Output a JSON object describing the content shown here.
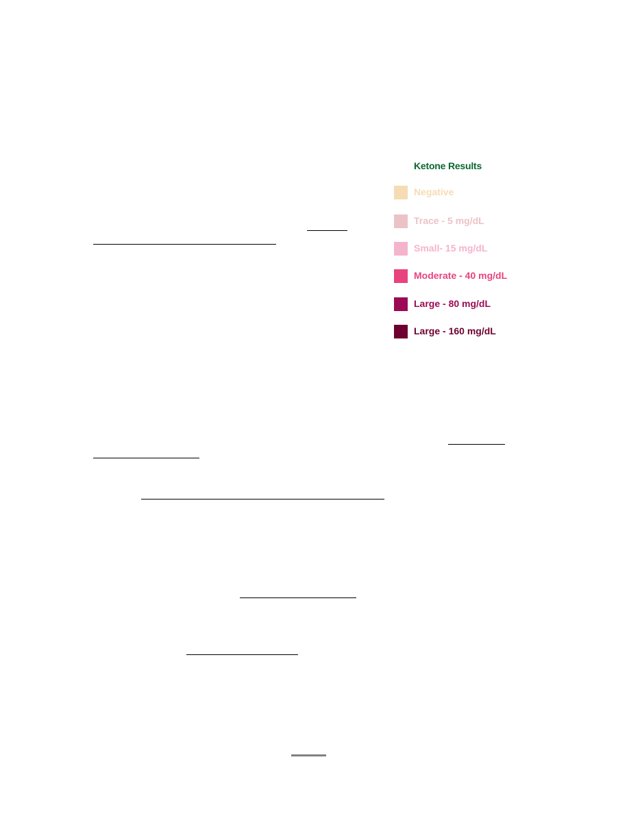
{
  "legend": {
    "title": "Ketone Results",
    "items": [
      {
        "label": "Negative",
        "color": "#f5dcb4"
      },
      {
        "label": "Trace - 5 mg/dL",
        "color": "#ebc3c6"
      },
      {
        "label": "Small- 15 mg/dL",
        "color": "#f5b4cd"
      },
      {
        "label": "Moderate - 40 mg/dL",
        "color": "#e8437f"
      },
      {
        "label": "Large - 80 mg/dL",
        "color": "#9b0a55"
      },
      {
        "label": "Large - 160 mg/dL",
        "color": "#6e0030"
      }
    ]
  }
}
